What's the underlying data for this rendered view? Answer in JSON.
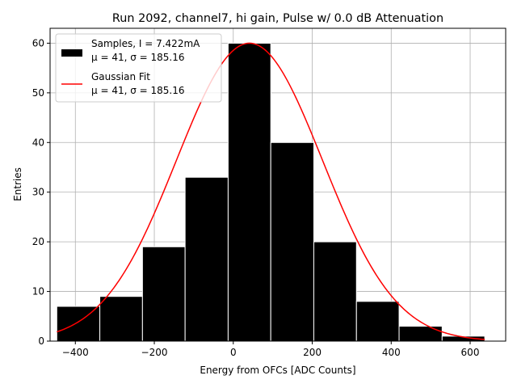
{
  "chart_data": {
    "type": "histogram",
    "title": "Run 2092, channel7, hi gain, Pulse w/ 0.0 dB Attenuation",
    "xlabel": "Energy from OFCs [ADC Counts]",
    "ylabel": "Entries",
    "xlim": [
      -464,
      690
    ],
    "ylim": [
      0,
      63
    ],
    "xticks": [
      -400,
      -200,
      0,
      200,
      400,
      600
    ],
    "yticks": [
      0,
      10,
      20,
      30,
      40,
      50,
      60
    ],
    "grid": true,
    "bins": [
      {
        "x0": -447,
        "x1": -338,
        "count": 7
      },
      {
        "x0": -338,
        "x1": -230,
        "count": 9
      },
      {
        "x0": -230,
        "x1": -122,
        "count": 19
      },
      {
        "x0": -122,
        "x1": -13,
        "count": 33
      },
      {
        "x0": -13,
        "x1": 95,
        "count": 60
      },
      {
        "x0": 95,
        "x1": 204,
        "count": 40
      },
      {
        "x0": 204,
        "x1": 312,
        "count": 20
      },
      {
        "x0": 312,
        "x1": 420,
        "count": 8
      },
      {
        "x0": 420,
        "x1": 529,
        "count": 3
      },
      {
        "x0": 529,
        "x1": 637,
        "count": 1
      }
    ],
    "fit": {
      "type": "gaussian",
      "amplitude": 60,
      "mean": 41,
      "sigma": 185.16,
      "x_range": [
        -447,
        637
      ],
      "color": "#ff0000"
    },
    "bar_color": "#000000",
    "bar_edge_color": "#ffffff",
    "legend": {
      "placement": "upper-left",
      "entries": [
        {
          "kind": "bar",
          "line1": "Samples, I = 7.422mA",
          "line2": "μ = 41, σ = 185.16",
          "color": "#000000"
        },
        {
          "kind": "line",
          "line1": "Gaussian Fit",
          "line2": "μ = 41, σ = 185.16",
          "color": "#ff0000"
        }
      ]
    }
  }
}
